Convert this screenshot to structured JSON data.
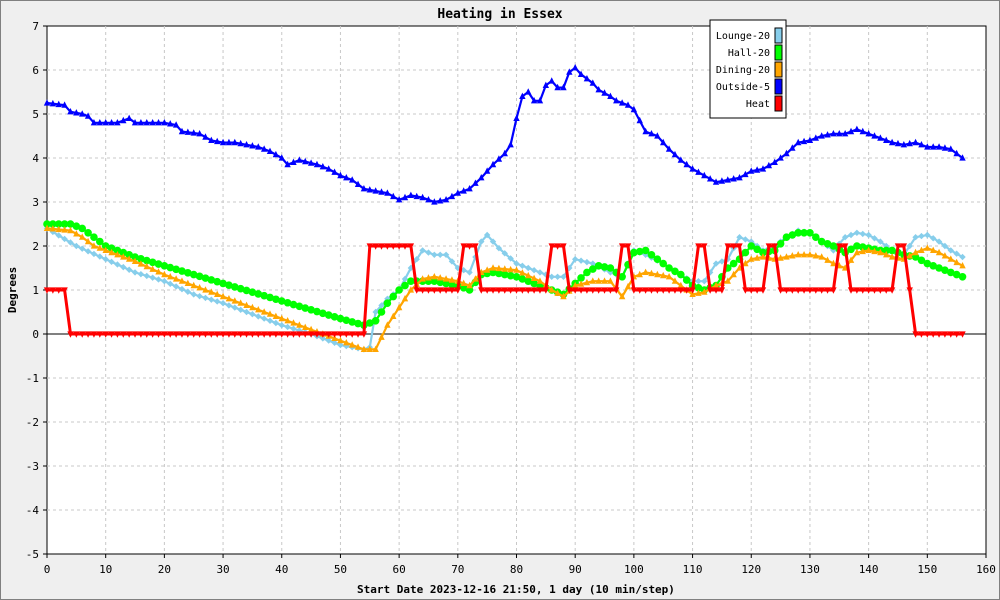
{
  "chart_data": {
    "type": "line",
    "title": "Heating in Essex",
    "xlabel": "Start Date 2023-12-16 21:50, 1 day (10 min/step)",
    "ylabel": "Degrees",
    "xlim": [
      0,
      160
    ],
    "ylim": [
      -5,
      7
    ],
    "x_ticks": [
      0,
      10,
      20,
      30,
      40,
      50,
      60,
      70,
      80,
      90,
      100,
      110,
      120,
      130,
      140,
      150,
      160
    ],
    "y_ticks": [
      -5,
      -4,
      -3,
      -2,
      -1,
      0,
      1,
      2,
      3,
      4,
      5,
      6,
      7
    ],
    "grid": true,
    "legend_position": "top-right",
    "series": [
      {
        "name": "Lounge-20",
        "color": "#87ceeb",
        "marker": "diamond",
        "points": [
          [
            0,
            2.4
          ],
          [
            5,
            2.0
          ],
          [
            10,
            1.7
          ],
          [
            15,
            1.4
          ],
          [
            20,
            1.2
          ],
          [
            25,
            0.9
          ],
          [
            30,
            0.7
          ],
          [
            35,
            0.45
          ],
          [
            40,
            0.2
          ],
          [
            45,
            0.0
          ],
          [
            50,
            -0.25
          ],
          [
            54,
            -0.35
          ],
          [
            55,
            -0.3
          ],
          [
            56,
            0.5
          ],
          [
            58,
            0.8
          ],
          [
            60,
            1.0
          ],
          [
            62,
            1.5
          ],
          [
            64,
            1.9
          ],
          [
            66,
            1.8
          ],
          [
            68,
            1.8
          ],
          [
            70,
            1.5
          ],
          [
            72,
            1.4
          ],
          [
            74,
            2.1
          ],
          [
            75,
            2.25
          ],
          [
            77,
            1.95
          ],
          [
            80,
            1.6
          ],
          [
            83,
            1.45
          ],
          [
            86,
            1.3
          ],
          [
            88,
            1.3
          ],
          [
            90,
            1.7
          ],
          [
            93,
            1.6
          ],
          [
            96,
            1.4
          ],
          [
            98,
            1.3
          ],
          [
            100,
            1.9
          ],
          [
            102,
            1.8
          ],
          [
            105,
            1.6
          ],
          [
            107,
            1.4
          ],
          [
            110,
            1.2
          ],
          [
            112,
            1.2
          ],
          [
            114,
            1.6
          ],
          [
            116,
            1.7
          ],
          [
            118,
            2.2
          ],
          [
            120,
            2.1
          ],
          [
            122,
            1.9
          ],
          [
            124,
            2.0
          ],
          [
            126,
            2.2
          ],
          [
            128,
            2.35
          ],
          [
            130,
            2.3
          ],
          [
            132,
            2.1
          ],
          [
            134,
            1.9
          ],
          [
            136,
            2.2
          ],
          [
            138,
            2.3
          ],
          [
            140,
            2.25
          ],
          [
            142,
            2.1
          ],
          [
            144,
            1.9
          ],
          [
            146,
            1.8
          ],
          [
            148,
            2.2
          ],
          [
            150,
            2.25
          ],
          [
            152,
            2.1
          ],
          [
            154,
            1.9
          ],
          [
            156,
            1.75
          ]
        ]
      },
      {
        "name": "Hall-20",
        "color": "#00ff00",
        "marker": "circle",
        "points": [
          [
            0,
            2.5
          ],
          [
            4,
            2.5
          ],
          [
            6,
            2.4
          ],
          [
            8,
            2.2
          ],
          [
            10,
            2.0
          ],
          [
            15,
            1.75
          ],
          [
            20,
            1.55
          ],
          [
            25,
            1.35
          ],
          [
            30,
            1.15
          ],
          [
            35,
            0.95
          ],
          [
            40,
            0.75
          ],
          [
            45,
            0.55
          ],
          [
            50,
            0.35
          ],
          [
            54,
            0.2
          ],
          [
            56,
            0.3
          ],
          [
            58,
            0.7
          ],
          [
            60,
            1.0
          ],
          [
            62,
            1.2
          ],
          [
            66,
            1.2
          ],
          [
            68,
            1.15
          ],
          [
            70,
            1.1
          ],
          [
            72,
            1.0
          ],
          [
            74,
            1.35
          ],
          [
            76,
            1.4
          ],
          [
            80,
            1.3
          ],
          [
            84,
            1.1
          ],
          [
            88,
            0.9
          ],
          [
            92,
            1.4
          ],
          [
            94,
            1.55
          ],
          [
            96,
            1.5
          ],
          [
            98,
            1.3
          ],
          [
            100,
            1.85
          ],
          [
            102,
            1.9
          ],
          [
            104,
            1.7
          ],
          [
            106,
            1.5
          ],
          [
            108,
            1.35
          ],
          [
            110,
            1.1
          ],
          [
            112,
            1.0
          ],
          [
            114,
            1.1
          ],
          [
            116,
            1.5
          ],
          [
            118,
            1.7
          ],
          [
            120,
            2.0
          ],
          [
            122,
            1.85
          ],
          [
            124,
            1.9
          ],
          [
            126,
            2.2
          ],
          [
            128,
            2.3
          ],
          [
            130,
            2.3
          ],
          [
            132,
            2.1
          ],
          [
            134,
            2.0
          ],
          [
            136,
            1.85
          ],
          [
            138,
            2.0
          ],
          [
            140,
            1.95
          ],
          [
            142,
            1.9
          ],
          [
            144,
            1.9
          ],
          [
            146,
            1.8
          ],
          [
            148,
            1.75
          ],
          [
            150,
            1.6
          ],
          [
            152,
            1.5
          ],
          [
            154,
            1.4
          ],
          [
            156,
            1.3
          ]
        ]
      },
      {
        "name": "Dining-20",
        "color": "#ffa500",
        "marker": "triangle",
        "points": [
          [
            0,
            2.4
          ],
          [
            4,
            2.35
          ],
          [
            6,
            2.2
          ],
          [
            8,
            2.0
          ],
          [
            10,
            1.9
          ],
          [
            15,
            1.65
          ],
          [
            20,
            1.35
          ],
          [
            25,
            1.1
          ],
          [
            30,
            0.85
          ],
          [
            35,
            0.6
          ],
          [
            40,
            0.35
          ],
          [
            45,
            0.1
          ],
          [
            50,
            -0.15
          ],
          [
            54,
            -0.35
          ],
          [
            56,
            -0.35
          ],
          [
            58,
            0.2
          ],
          [
            60,
            0.6
          ],
          [
            62,
            1.0
          ],
          [
            64,
            1.25
          ],
          [
            66,
            1.3
          ],
          [
            68,
            1.25
          ],
          [
            70,
            1.2
          ],
          [
            72,
            1.1
          ],
          [
            74,
            1.4
          ],
          [
            76,
            1.5
          ],
          [
            80,
            1.45
          ],
          [
            84,
            1.2
          ],
          [
            86,
            1.0
          ],
          [
            88,
            0.85
          ],
          [
            90,
            1.1
          ],
          [
            93,
            1.2
          ],
          [
            96,
            1.2
          ],
          [
            98,
            0.85
          ],
          [
            100,
            1.3
          ],
          [
            102,
            1.4
          ],
          [
            104,
            1.35
          ],
          [
            106,
            1.3
          ],
          [
            108,
            1.1
          ],
          [
            110,
            0.9
          ],
          [
            112,
            0.95
          ],
          [
            114,
            1.1
          ],
          [
            116,
            1.2
          ],
          [
            118,
            1.5
          ],
          [
            120,
            1.7
          ],
          [
            122,
            1.75
          ],
          [
            124,
            1.7
          ],
          [
            126,
            1.75
          ],
          [
            128,
            1.8
          ],
          [
            130,
            1.8
          ],
          [
            132,
            1.75
          ],
          [
            134,
            1.6
          ],
          [
            136,
            1.5
          ],
          [
            138,
            1.85
          ],
          [
            140,
            1.9
          ],
          [
            142,
            1.85
          ],
          [
            144,
            1.75
          ],
          [
            146,
            1.7
          ],
          [
            148,
            1.85
          ],
          [
            150,
            1.95
          ],
          [
            152,
            1.85
          ],
          [
            154,
            1.7
          ],
          [
            156,
            1.55
          ]
        ]
      },
      {
        "name": "Outside-5",
        "color": "#0000ff",
        "marker": "triangle",
        "points": [
          [
            0,
            5.25
          ],
          [
            3,
            5.2
          ],
          [
            4,
            5.05
          ],
          [
            6,
            5.0
          ],
          [
            7,
            4.95
          ],
          [
            8,
            4.8
          ],
          [
            12,
            4.8
          ],
          [
            14,
            4.9
          ],
          [
            15,
            4.8
          ],
          [
            20,
            4.8
          ],
          [
            22,
            4.75
          ],
          [
            23,
            4.6
          ],
          [
            26,
            4.55
          ],
          [
            28,
            4.4
          ],
          [
            30,
            4.35
          ],
          [
            32,
            4.35
          ],
          [
            34,
            4.3
          ],
          [
            36,
            4.25
          ],
          [
            38,
            4.15
          ],
          [
            40,
            4.0
          ],
          [
            41,
            3.85
          ],
          [
            43,
            3.95
          ],
          [
            46,
            3.85
          ],
          [
            48,
            3.75
          ],
          [
            50,
            3.6
          ],
          [
            52,
            3.5
          ],
          [
            54,
            3.3
          ],
          [
            56,
            3.25
          ],
          [
            58,
            3.2
          ],
          [
            60,
            3.05
          ],
          [
            62,
            3.15
          ],
          [
            64,
            3.1
          ],
          [
            66,
            3.0
          ],
          [
            68,
            3.05
          ],
          [
            70,
            3.2
          ],
          [
            72,
            3.3
          ],
          [
            74,
            3.55
          ],
          [
            76,
            3.85
          ],
          [
            78,
            4.1
          ],
          [
            79,
            4.3
          ],
          [
            80,
            4.9
          ],
          [
            81,
            5.4
          ],
          [
            82,
            5.5
          ],
          [
            83,
            5.3
          ],
          [
            84,
            5.3
          ],
          [
            85,
            5.65
          ],
          [
            86,
            5.75
          ],
          [
            87,
            5.6
          ],
          [
            88,
            5.6
          ],
          [
            89,
            5.95
          ],
          [
            90,
            6.05
          ],
          [
            91,
            5.9
          ],
          [
            93,
            5.7
          ],
          [
            94,
            5.55
          ],
          [
            96,
            5.4
          ],
          [
            97,
            5.3
          ],
          [
            99,
            5.2
          ],
          [
            100,
            5.1
          ],
          [
            101,
            4.85
          ],
          [
            102,
            4.6
          ],
          [
            104,
            4.5
          ],
          [
            106,
            4.2
          ],
          [
            108,
            3.95
          ],
          [
            110,
            3.75
          ],
          [
            112,
            3.6
          ],
          [
            114,
            3.45
          ],
          [
            116,
            3.5
          ],
          [
            118,
            3.55
          ],
          [
            120,
            3.7
          ],
          [
            122,
            3.75
          ],
          [
            124,
            3.9
          ],
          [
            126,
            4.1
          ],
          [
            128,
            4.35
          ],
          [
            130,
            4.4
          ],
          [
            132,
            4.5
          ],
          [
            134,
            4.55
          ],
          [
            136,
            4.55
          ],
          [
            138,
            4.65
          ],
          [
            140,
            4.55
          ],
          [
            142,
            4.45
          ],
          [
            144,
            4.35
          ],
          [
            146,
            4.3
          ],
          [
            148,
            4.35
          ],
          [
            150,
            4.25
          ],
          [
            152,
            4.25
          ],
          [
            154,
            4.2
          ],
          [
            155,
            4.1
          ],
          [
            156,
            4.0
          ]
        ]
      },
      {
        "name": "Heat",
        "color": "#ff0000",
        "marker": "triangle-down",
        "points": [
          [
            0,
            1
          ],
          [
            3,
            1
          ],
          [
            4,
            0
          ],
          [
            54,
            0
          ],
          [
            55,
            2
          ],
          [
            62,
            2
          ],
          [
            63,
            1
          ],
          [
            70,
            1
          ],
          [
            71,
            2
          ],
          [
            73,
            2
          ],
          [
            74,
            1
          ],
          [
            85,
            1
          ],
          [
            86,
            2
          ],
          [
            88,
            2
          ],
          [
            89,
            1
          ],
          [
            97,
            1
          ],
          [
            98,
            2
          ],
          [
            99,
            2
          ],
          [
            100,
            1
          ],
          [
            109,
            1
          ],
          [
            110,
            1
          ],
          [
            111,
            2
          ],
          [
            112,
            2
          ],
          [
            113,
            1
          ],
          [
            115,
            1
          ],
          [
            116,
            2
          ],
          [
            118,
            2
          ],
          [
            119,
            1
          ],
          [
            122,
            1
          ],
          [
            123,
            2
          ],
          [
            124,
            2
          ],
          [
            125,
            1
          ],
          [
            134,
            1
          ],
          [
            135,
            2
          ],
          [
            136,
            2
          ],
          [
            137,
            1
          ],
          [
            144,
            1
          ],
          [
            145,
            2
          ],
          [
            146,
            2
          ],
          [
            147,
            1
          ],
          [
            148,
            0
          ],
          [
            156,
            0
          ]
        ]
      }
    ]
  }
}
